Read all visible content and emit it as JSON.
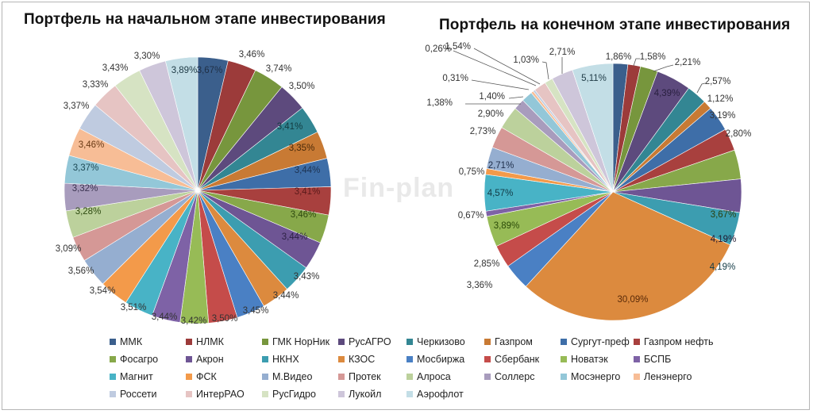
{
  "titles": {
    "left": "Портфель на начальном этапе инвестирования",
    "right": "Портфель на конечном этапе инвестирования"
  },
  "watermark": "Fin-plan",
  "legend": [
    {
      "label": "ММК",
      "color": "#3b5f8c"
    },
    {
      "label": "НЛМК",
      "color": "#9c3b3a"
    },
    {
      "label": "ГМК НорНик",
      "color": "#77963d"
    },
    {
      "label": "РусАГРО",
      "color": "#5d4a7d"
    },
    {
      "label": "Черкизово",
      "color": "#338693"
    },
    {
      "label": "Газпром",
      "color": "#c87a34"
    },
    {
      "label": "Сургут-преф",
      "color": "#3e6ea8"
    },
    {
      "label": "Газпром нефть",
      "color": "#a8403e"
    },
    {
      "label": "Фосагро",
      "color": "#87a84a"
    },
    {
      "label": "Акрон",
      "color": "#6e5594"
    },
    {
      "label": "НКНХ",
      "color": "#3c9db0"
    },
    {
      "label": "КЗОС",
      "color": "#dc8a3e"
    },
    {
      "label": "Мосбиржа",
      "color": "#4a80c4"
    },
    {
      "label": "Сбербанк",
      "color": "#c54c4a"
    },
    {
      "label": "Новатэк",
      "color": "#97bb56"
    },
    {
      "label": "БСПБ",
      "color": "#7e62a6"
    },
    {
      "label": "Магнит",
      "color": "#48b3c6"
    },
    {
      "label": "ФСК",
      "color": "#f39a4a"
    },
    {
      "label": "М.Видео",
      "color": "#95aed0"
    },
    {
      "label": "Протек",
      "color": "#d59896"
    },
    {
      "label": "Алроса",
      "color": "#bcd19c"
    },
    {
      "label": "Соллерс",
      "color": "#a89cbd"
    },
    {
      "label": "Мосэнерго",
      "color": "#93c7d8"
    },
    {
      "label": "Ленэнерго",
      "color": "#f7bd96"
    },
    {
      "label": "Россети",
      "color": "#bfcbe0"
    },
    {
      "label": "ИнтерРАО",
      "color": "#e6c4c3"
    },
    {
      "label": "РусГидро",
      "color": "#d6e3c3"
    },
    {
      "label": "Лукойл",
      "color": "#cec6da"
    },
    {
      "label": "Аэрофлот",
      "color": "#c3dee6"
    }
  ],
  "chart_data": [
    {
      "type": "pie",
      "title": "Портфель на начальном этапе инвестирования",
      "categories": [
        "ММК",
        "НЛМК",
        "ГМК НорНик",
        "РусАГРО",
        "Черкизово",
        "Газпром",
        "Сургут-преф",
        "Газпром нефть",
        "Фосагро",
        "Акрон",
        "НКНХ",
        "КЗОС",
        "Мосбиржа",
        "Сбербанк",
        "Новатэк",
        "БСПБ",
        "Магнит",
        "ФСК",
        "М.Видео",
        "Протек",
        "Алроса",
        "Соллерс",
        "Мосэнерго",
        "Ленэнерго",
        "Россети",
        "ИнтерРАО",
        "РусГидро",
        "Лукойл",
        "Аэрофлот"
      ],
      "values": [
        3.67,
        3.46,
        3.74,
        3.5,
        3.41,
        3.35,
        3.44,
        3.41,
        3.46,
        3.44,
        3.43,
        3.44,
        3.45,
        3.5,
        3.42,
        3.44,
        3.51,
        3.54,
        3.56,
        3.09,
        3.28,
        3.32,
        3.37,
        3.46,
        3.37,
        3.33,
        3.43,
        3.3,
        3.89
      ],
      "labels": [
        "3,67%",
        "3,46%",
        "3,74%",
        "3,50%",
        "3,41%",
        "3,35%",
        "3,44%",
        "3,41%",
        "3,46%",
        "3,44%",
        "3,43%",
        "3,44%",
        "3,45%",
        "3,50%",
        "3,42%",
        "3,44%",
        "3,51%",
        "3,54%",
        "3,56%",
        "3,09%",
        "3,28%",
        "3,32%",
        "3,37%",
        "3,46%",
        "3,37%",
        "3,33%",
        "3,43%",
        "3,30%",
        "3,89%"
      ],
      "start_angle": "12 o'clock, clockwise",
      "legend_position": "bottom"
    },
    {
      "type": "pie",
      "title": "Портфель на конечном этапе инвестирования",
      "categories": [
        "ММК",
        "НЛМК",
        "ГМК НорНик",
        "РусАГРО",
        "Черкизово",
        "Газпром",
        "Сургут-преф",
        "Газпром нефть",
        "Фосагро",
        "Акрон",
        "НКНХ",
        "КЗОС",
        "Мосбиржа",
        "Сбербанк",
        "Новатэк",
        "БСПБ",
        "Магнит",
        "ФСК",
        "М.Видео",
        "Протек",
        "Алроса",
        "Соллерс",
        "Мосэнерго",
        "Ленэнерго",
        "Россети",
        "ИнтерРАО",
        "РусГидро",
        "Лукойл",
        "Аэрофлот"
      ],
      "values": [
        1.86,
        1.58,
        2.21,
        4.39,
        2.57,
        1.12,
        3.19,
        2.8,
        3.67,
        4.19,
        4.19,
        30.09,
        3.36,
        2.85,
        3.89,
        0.67,
        4.57,
        0.75,
        2.71,
        2.73,
        2.9,
        1.38,
        1.4,
        0.31,
        0.26,
        1.54,
        1.03,
        2.71,
        5.11
      ],
      "labels": [
        "1,86%",
        "1,58%",
        "2,21%",
        "4,39%",
        "2,57%",
        "1,12%",
        "3,19%",
        "2,80%",
        "3,67%",
        "4,19%",
        "4,19%",
        "30,09%",
        "3,36%",
        "2,85%",
        "3,89%",
        "0,67%",
        "4,57%",
        "0,75%",
        "2,71%",
        "2,73%",
        "2,90%",
        "1,38%",
        "1,40%",
        "0,31%",
        "0,26%",
        "1,54%",
        "1,03%",
        "2,71%",
        "5,11%"
      ],
      "start_angle": "12 o'clock, clockwise",
      "legend_position": "bottom"
    }
  ]
}
